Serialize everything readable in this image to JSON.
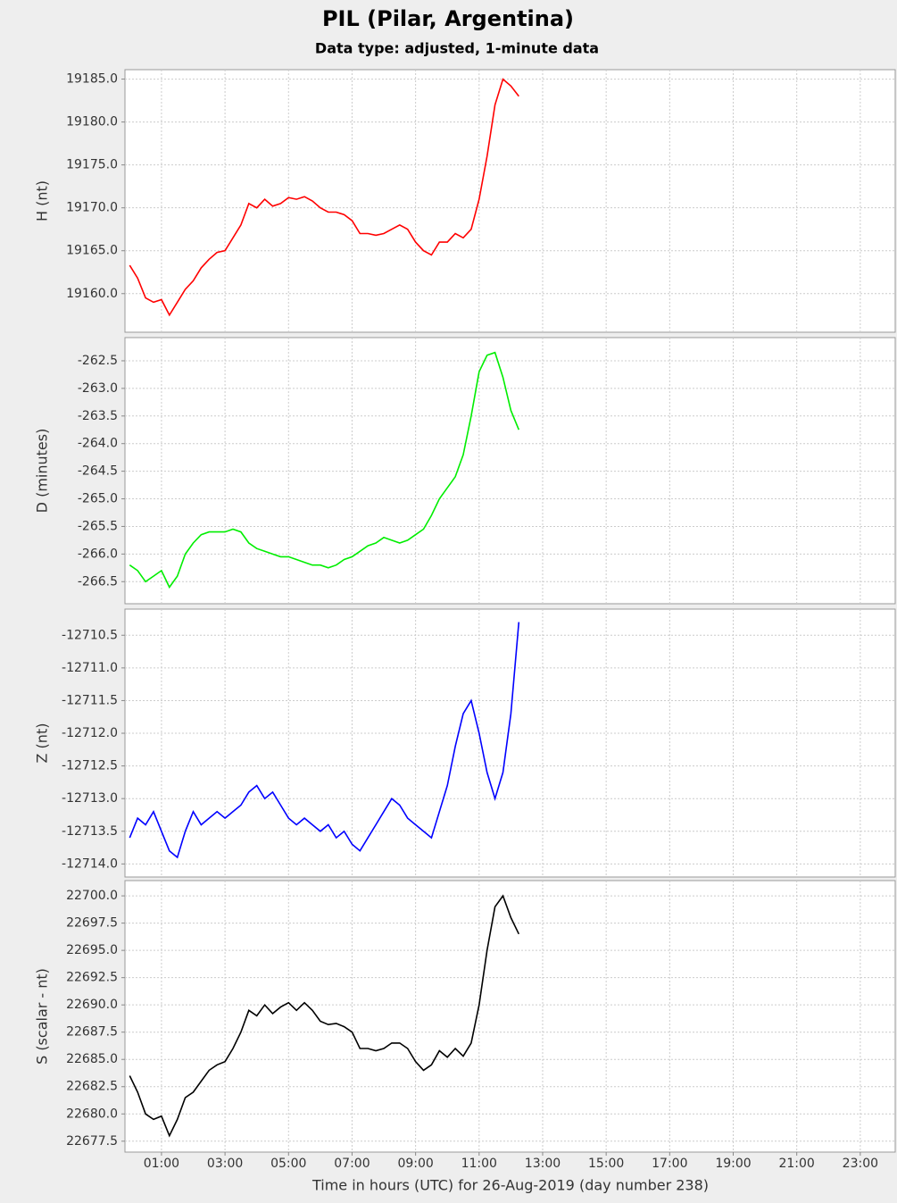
{
  "title": "PIL (Pilar, Argentina)",
  "subtitle": "Data type: adjusted, 1-minute data",
  "chart_data": [
    {
      "type": "line",
      "ylabel": "H (nt)",
      "color": "#ff0000",
      "grid": true,
      "x": [
        0,
        0.25,
        0.5,
        0.75,
        1,
        1.25,
        1.5,
        1.75,
        2,
        2.25,
        2.5,
        2.75,
        3,
        3.25,
        3.5,
        3.75,
        4,
        4.25,
        4.5,
        4.75,
        5,
        5.25,
        5.5,
        5.75,
        6,
        6.25,
        6.5,
        6.75,
        7,
        7.25,
        7.5,
        7.75,
        8,
        8.25,
        8.5,
        8.75,
        9,
        9.25,
        9.5,
        9.75,
        10,
        10.25,
        10.5,
        10.75,
        11,
        11.25,
        11.5,
        11.75,
        12,
        12.25
      ],
      "values": [
        19163.3,
        19161.8,
        19159.5,
        19159.0,
        19159.3,
        19157.5,
        19159.0,
        19160.5,
        19161.5,
        19163.0,
        19164.0,
        19164.8,
        19165.0,
        19166.5,
        19168.0,
        19170.5,
        19170.0,
        19171.0,
        19170.2,
        19170.5,
        19171.2,
        19171.0,
        19171.3,
        19170.8,
        19170.0,
        19169.5,
        19169.5,
        19169.2,
        19168.5,
        19167.0,
        19167.0,
        19166.8,
        19167.0,
        19167.5,
        19168.0,
        19167.5,
        19166.0,
        19165.0,
        19164.5,
        19166.0,
        19166.0,
        19167.0,
        19166.5,
        19167.5,
        19171.0,
        19176.0,
        19182.0,
        19185.0,
        19184.2,
        19183.0
      ],
      "ylim": [
        19155.5,
        19186.1
      ],
      "yticks": [
        {
          "value": 19160,
          "label": "19160.0"
        },
        {
          "value": 19165,
          "label": "19165.0"
        },
        {
          "value": 19170,
          "label": "19170.0"
        },
        {
          "value": 19175,
          "label": "19175.0"
        },
        {
          "value": 19180,
          "label": "19180.0"
        },
        {
          "value": 19185,
          "label": "19185.0"
        }
      ]
    },
    {
      "type": "line",
      "ylabel": "D (minutes)",
      "color": "#00ee00",
      "grid": true,
      "x": [
        0,
        0.25,
        0.5,
        0.75,
        1,
        1.25,
        1.5,
        1.75,
        2,
        2.25,
        2.5,
        2.75,
        3,
        3.25,
        3.5,
        3.75,
        4,
        4.25,
        4.5,
        4.75,
        5,
        5.25,
        5.5,
        5.75,
        6,
        6.25,
        6.5,
        6.75,
        7,
        7.25,
        7.5,
        7.75,
        8,
        8.25,
        8.5,
        8.75,
        9,
        9.25,
        9.5,
        9.75,
        10,
        10.25,
        10.5,
        10.75,
        11,
        11.25,
        11.5,
        11.75,
        12,
        12.25
      ],
      "values": [
        -266.2,
        -266.3,
        -266.5,
        -266.4,
        -266.3,
        -266.6,
        -266.4,
        -266.0,
        -265.8,
        -265.65,
        -265.6,
        -265.6,
        -265.6,
        -265.55,
        -265.6,
        -265.8,
        -265.9,
        -265.95,
        -266.0,
        -266.05,
        -266.05,
        -266.1,
        -266.15,
        -266.2,
        -266.2,
        -266.25,
        -266.2,
        -266.1,
        -266.05,
        -265.95,
        -265.85,
        -265.8,
        -265.7,
        -265.75,
        -265.8,
        -265.75,
        -265.65,
        -265.55,
        -265.3,
        -265.0,
        -264.8,
        -264.6,
        -264.2,
        -263.5,
        -262.7,
        -262.4,
        -262.35,
        -262.8,
        -263.4,
        -263.75
      ],
      "ylim": [
        -266.9,
        -262.08
      ],
      "yticks": [
        -266.5,
        {
          "value": -266,
          "label": "-266.0"
        },
        -265.5,
        {
          "value": -265,
          "label": "-265.0"
        },
        -264.5,
        {
          "value": -264,
          "label": "-264.0"
        },
        -263.5,
        {
          "value": -263,
          "label": "-263.0"
        },
        -262.5
      ]
    },
    {
      "type": "line",
      "ylabel": "Z (nt)",
      "color": "#0000ff",
      "grid": true,
      "x": [
        0,
        0.25,
        0.5,
        0.75,
        1,
        1.25,
        1.5,
        1.75,
        2,
        2.25,
        2.5,
        2.75,
        3,
        3.25,
        3.5,
        3.75,
        4,
        4.25,
        4.5,
        4.75,
        5,
        5.25,
        5.5,
        5.75,
        6,
        6.25,
        6.5,
        6.75,
        7,
        7.25,
        7.5,
        7.75,
        8,
        8.25,
        8.5,
        8.75,
        9,
        9.25,
        9.5,
        9.75,
        10,
        10.25,
        10.5,
        10.75,
        11,
        11.25,
        11.5,
        11.75,
        12,
        12.25
      ],
      "values": [
        -12713.6,
        -12713.3,
        -12713.4,
        -12713.2,
        -12713.5,
        -12713.8,
        -12713.9,
        -12713.5,
        -12713.2,
        -12713.4,
        -12713.3,
        -12713.2,
        -12713.3,
        -12713.2,
        -12713.1,
        -12712.9,
        -12712.8,
        -12713.0,
        -12712.9,
        -12713.1,
        -12713.3,
        -12713.4,
        -12713.3,
        -12713.4,
        -12713.5,
        -12713.4,
        -12713.6,
        -12713.5,
        -12713.7,
        -12713.8,
        -12713.6,
        -12713.4,
        -12713.2,
        -12713.0,
        -12713.1,
        -12713.3,
        -12713.4,
        -12713.5,
        -12713.6,
        -12713.2,
        -12712.8,
        -12712.2,
        -12711.7,
        -12711.5,
        -12712.0,
        -12712.6,
        -12713.0,
        -12712.6,
        -12711.7,
        -12710.3
      ],
      "ylim": [
        -12714.2,
        -12710.1
      ],
      "yticks": [
        {
          "value": -12714,
          "label": "-12714.0"
        },
        -12713.5,
        {
          "value": -12713,
          "label": "-12713.0"
        },
        -12712.5,
        {
          "value": -12712,
          "label": "-12712.0"
        },
        -12711.5,
        {
          "value": -12711,
          "label": "-12711.0"
        },
        -12710.5
      ]
    },
    {
      "type": "line",
      "ylabel": "S (scalar - nt)",
      "color": "#000000",
      "grid": true,
      "xlabel": "Time in hours (UTC) for 26-Aug-2019 (day number 238)",
      "x": [
        0,
        0.25,
        0.5,
        0.75,
        1,
        1.25,
        1.5,
        1.75,
        2,
        2.25,
        2.5,
        2.75,
        3,
        3.25,
        3.5,
        3.75,
        4,
        4.25,
        4.5,
        4.75,
        5,
        5.25,
        5.5,
        5.75,
        6,
        6.25,
        6.5,
        6.75,
        7,
        7.25,
        7.5,
        7.75,
        8,
        8.25,
        8.5,
        8.75,
        9,
        9.25,
        9.5,
        9.75,
        10,
        10.25,
        10.5,
        10.75,
        11,
        11.25,
        11.5,
        11.75,
        12,
        12.25
      ],
      "values": [
        22683.5,
        22682.0,
        22680.0,
        22679.5,
        22679.8,
        22678.0,
        22679.5,
        22681.5,
        22682.0,
        22683.0,
        22684.0,
        22684.5,
        22684.8,
        22686.0,
        22687.5,
        22689.5,
        22689.0,
        22690.0,
        22689.2,
        22689.8,
        22690.2,
        22689.5,
        22690.2,
        22689.5,
        22688.5,
        22688.2,
        22688.3,
        22688.0,
        22687.5,
        22686.0,
        22686.0,
        22685.8,
        22686.0,
        22686.5,
        22686.5,
        22686.0,
        22684.8,
        22684.0,
        22684.5,
        22685.8,
        22685.2,
        22686.0,
        22685.3,
        22686.5,
        22690.0,
        22695.0,
        22699.0,
        22700.0,
        22698.0,
        22696.5
      ],
      "ylim": [
        22676.5,
        22701.4
      ],
      "yticks": [
        22677.5,
        {
          "value": 22680,
          "label": "22680.0"
        },
        22682.5,
        {
          "value": 22685,
          "label": "22685.0"
        },
        22687.5,
        {
          "value": 22690,
          "label": "22690.0"
        },
        22692.5,
        {
          "value": 22695,
          "label": "22695.0"
        },
        22697.5,
        {
          "value": 22700,
          "label": "22700.0"
        }
      ],
      "xlim": [
        -0.15,
        24.1
      ],
      "xticks": [
        {
          "value": 1,
          "label": "01:00"
        },
        {
          "value": 3,
          "label": "03:00"
        },
        {
          "value": 5,
          "label": "05:00"
        },
        {
          "value": 7,
          "label": "07:00"
        },
        {
          "value": 9,
          "label": "09:00"
        },
        {
          "value": 11,
          "label": "11:00"
        },
        {
          "value": 13,
          "label": "13:00"
        },
        {
          "value": 15,
          "label": "15:00"
        },
        {
          "value": 17,
          "label": "17:00"
        },
        {
          "value": 19,
          "label": "19:00"
        },
        {
          "value": 21,
          "label": "21:00"
        },
        {
          "value": 23,
          "label": "23:00"
        }
      ]
    }
  ]
}
